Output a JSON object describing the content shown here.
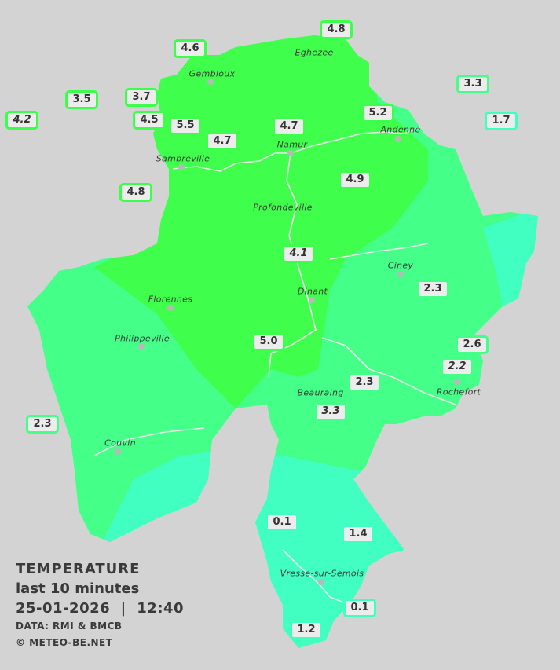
{
  "legend": {
    "title": "TEMPERATURE",
    "period": "last 10 minutes",
    "datetime": "25-01-2026  |  12:40",
    "source": "DATA: RMI & BMCB",
    "copyright": "© METEO-BE.NET"
  },
  "colors": {
    "background": "#d3d3d3",
    "zone_warm": "#40ff4c",
    "zone_mild": "#44ff88",
    "zone_cool": "#40ffc0",
    "rivers": "#e8e8e8"
  },
  "cities": [
    "Eghezee",
    "Gembloux",
    "Andenne",
    "Namur",
    "Sambreville",
    "Profondeville",
    "Ciney",
    "Dinant",
    "Florennes",
    "Philippeville",
    "Rochefort",
    "Beauraing",
    "Couvin",
    "Vresse-sur-Semois"
  ],
  "stations": [
    {
      "value": "4.8"
    },
    {
      "value": "4.6"
    },
    {
      "value": "3.3"
    },
    {
      "value": "3.5"
    },
    {
      "value": "3.7"
    },
    {
      "value": "4.2",
      "estimated": true
    },
    {
      "value": "4.5"
    },
    {
      "value": "5.5"
    },
    {
      "value": "4.7"
    },
    {
      "value": "4.7"
    },
    {
      "value": "5.2"
    },
    {
      "value": "1.7"
    },
    {
      "value": "4.8"
    },
    {
      "value": "4.9"
    },
    {
      "value": "4.1",
      "estimated": true
    },
    {
      "value": "2.3"
    },
    {
      "value": "5.0"
    },
    {
      "value": "2.6"
    },
    {
      "value": "2.2",
      "estimated": true
    },
    {
      "value": "2.3"
    },
    {
      "value": "3.3",
      "estimated": true
    },
    {
      "value": "2.3"
    },
    {
      "value": "0.1"
    },
    {
      "value": "1.4"
    },
    {
      "value": "0.1"
    },
    {
      "value": "1.2"
    }
  ]
}
